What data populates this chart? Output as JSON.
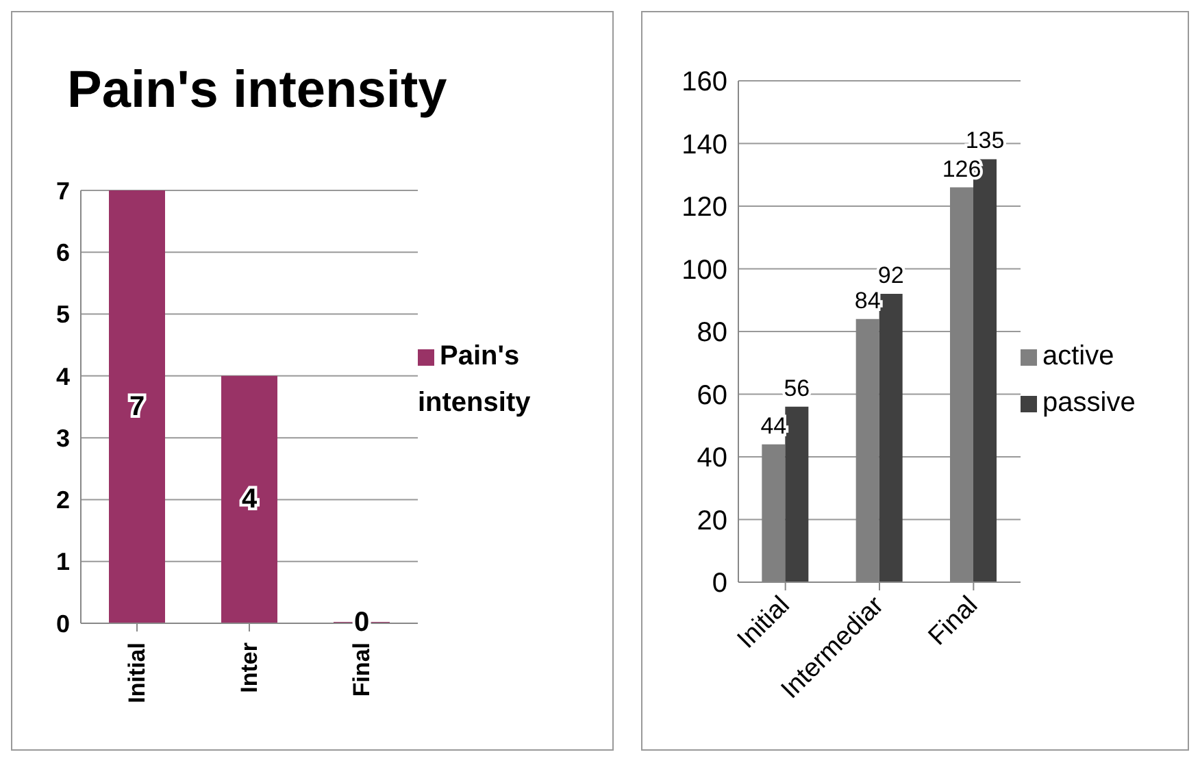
{
  "chart_data": [
    {
      "type": "bar",
      "title": "Pain's intensity",
      "categories": [
        "Initial",
        "Inter",
        "Final"
      ],
      "series": [
        {
          "name": "Pain's intensity",
          "color": "#993366",
          "values": [
            7,
            4,
            0
          ]
        }
      ],
      "ylim": [
        0,
        7
      ],
      "yticks": [
        0,
        1,
        2,
        3,
        4,
        5,
        6,
        7
      ],
      "grid": "y",
      "legend": "right",
      "data_labels": true
    },
    {
      "type": "bar",
      "categories": [
        "Initial",
        "Intermediar",
        "Final"
      ],
      "series": [
        {
          "name": "active",
          "color": "#808080",
          "values": [
            44,
            84,
            126
          ]
        },
        {
          "name": "passive",
          "color": "#404040",
          "values": [
            56,
            92,
            135
          ]
        }
      ],
      "ylim": [
        0,
        160
      ],
      "yticks": [
        0,
        20,
        40,
        60,
        80,
        100,
        120,
        140,
        160
      ],
      "grid": "y",
      "legend": "right",
      "data_labels": true
    }
  ]
}
